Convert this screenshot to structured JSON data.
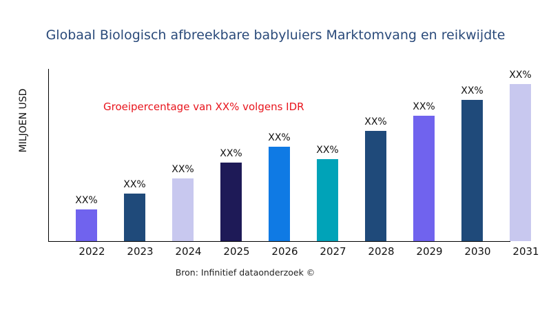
{
  "chart_data": {
    "type": "bar",
    "title": "Globaal Biologisch afbreekbare babyluiers Marktomvang en reikwijdte",
    "xlabel": "",
    "ylabel": "MILJOEN USD",
    "annotation": "Groeipercentage van XX% volgens IDR",
    "source": "Bron: Infinitief dataonderzoek ©",
    "categories": [
      "2022",
      "2023",
      "2024",
      "2025",
      "2026",
      "2027",
      "2028",
      "2029",
      "2030",
      "2031"
    ],
    "values": [
      46,
      69,
      91,
      114,
      137,
      119,
      160,
      182,
      205,
      228
    ],
    "data_labels": [
      "XX%",
      "XX%",
      "XX%",
      "XX%",
      "XX%",
      "XX%",
      "XX%",
      "XX%",
      "XX%",
      "XX%"
    ],
    "colors": [
      "#7063ee",
      "#1f4a7a",
      "#c8c8ef",
      "#1e1a57",
      "#0f7ae4",
      "#00a3b8",
      "#1f4a7a",
      "#7063ee",
      "#1f4a7a",
      "#c8c8ef"
    ],
    "ylim": [
      0,
      250
    ],
    "grid": false,
    "legend": "none"
  }
}
